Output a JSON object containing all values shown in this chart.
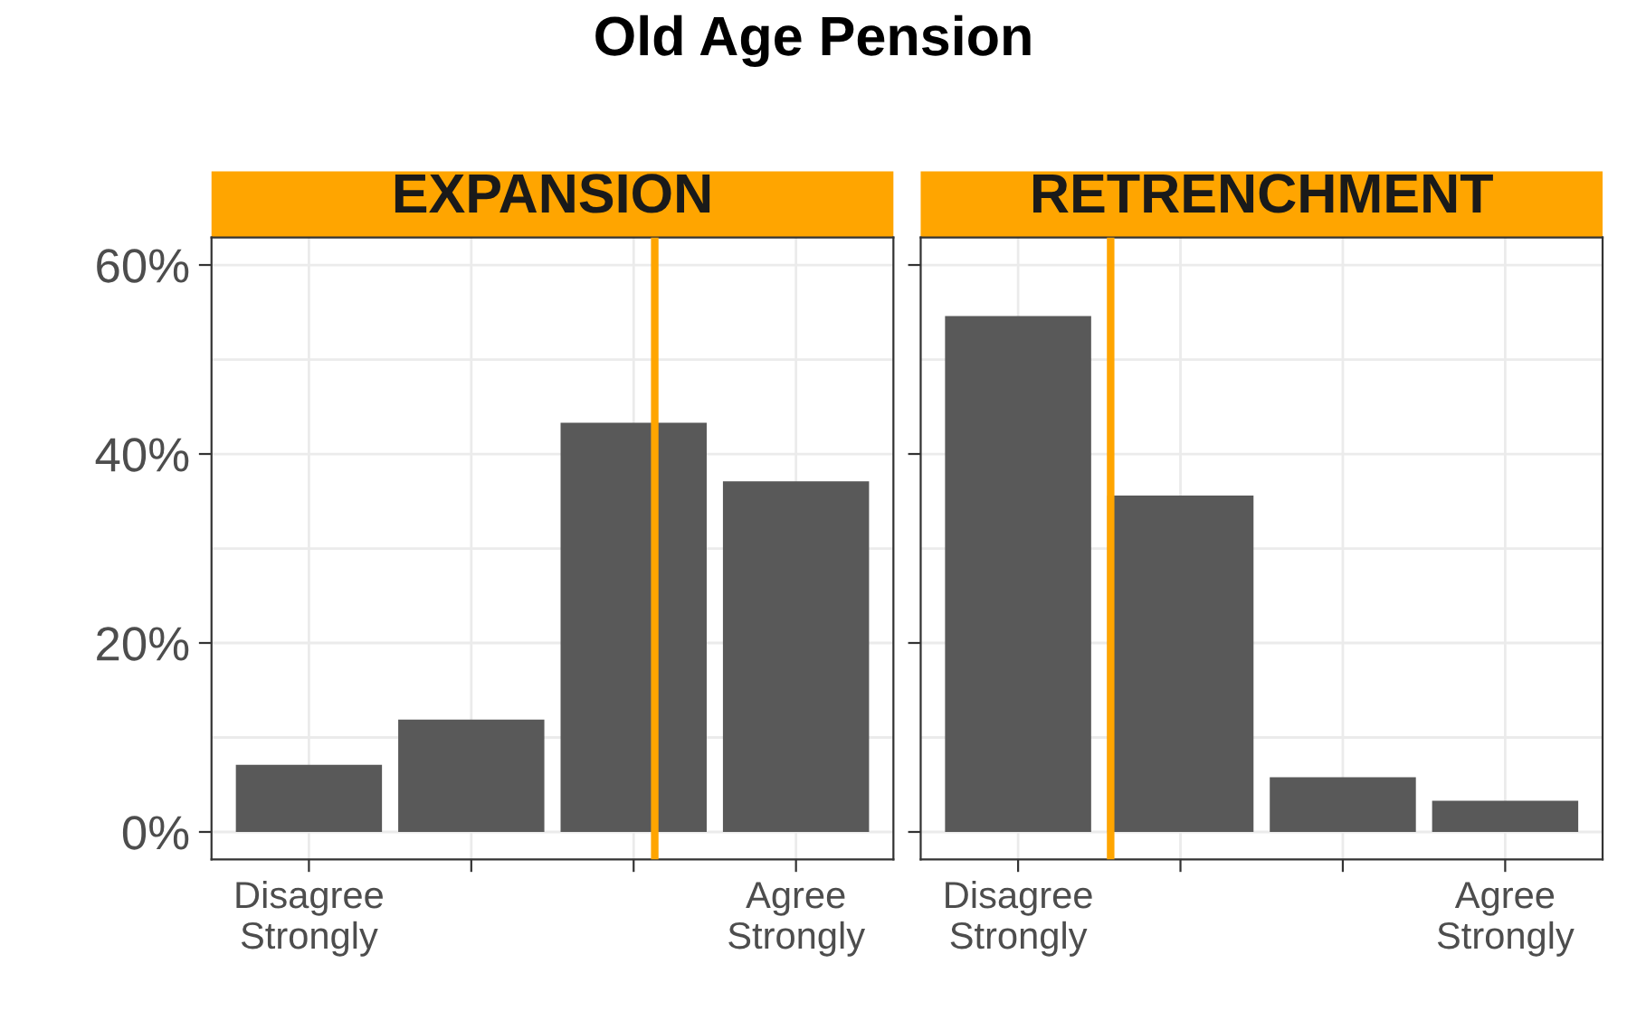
{
  "chart_data": [
    {
      "type": "bar",
      "title": "EXPANSION",
      "annotations": [
        "Old Age Pension"
      ],
      "categories": [
        "Disagree\nStrongly",
        null,
        null,
        "Agree\nStrongly"
      ],
      "values": [
        7.1,
        11.9,
        43.3,
        37.1
      ],
      "color": "#595959",
      "ylim": [
        -2.9,
        62.9
      ],
      "yticks": [
        {
          "value": 0,
          "label": "0%"
        },
        {
          "value": 10,
          "label": null
        },
        {
          "value": 20,
          "label": "20%"
        },
        {
          "value": 30,
          "label": null
        },
        {
          "value": 40,
          "label": "40%"
        },
        {
          "value": 50,
          "label": null
        },
        {
          "value": 60,
          "label": "60%"
        }
      ],
      "grid": true
    },
    {
      "type": "bar",
      "title": "RETRENCHMENT",
      "categories": [
        "Disagree\nStrongly",
        null,
        null,
        "Agree\nStrongly"
      ],
      "values": [
        54.6,
        35.6,
        5.8,
        3.3
      ],
      "color": "#595959",
      "ylim": [
        -2.9,
        62.9
      ],
      "yticks": [
        {
          "value": 0,
          "label": null
        },
        {
          "value": 10,
          "label": null
        },
        {
          "value": 20,
          "label": null
        },
        {
          "value": 30,
          "label": null
        },
        {
          "value": 40,
          "label": null
        },
        {
          "value": 50,
          "label": null
        },
        {
          "value": 60,
          "label": null
        }
      ],
      "grid": true,
      "tick_labels": "x"
    }
  ]
}
